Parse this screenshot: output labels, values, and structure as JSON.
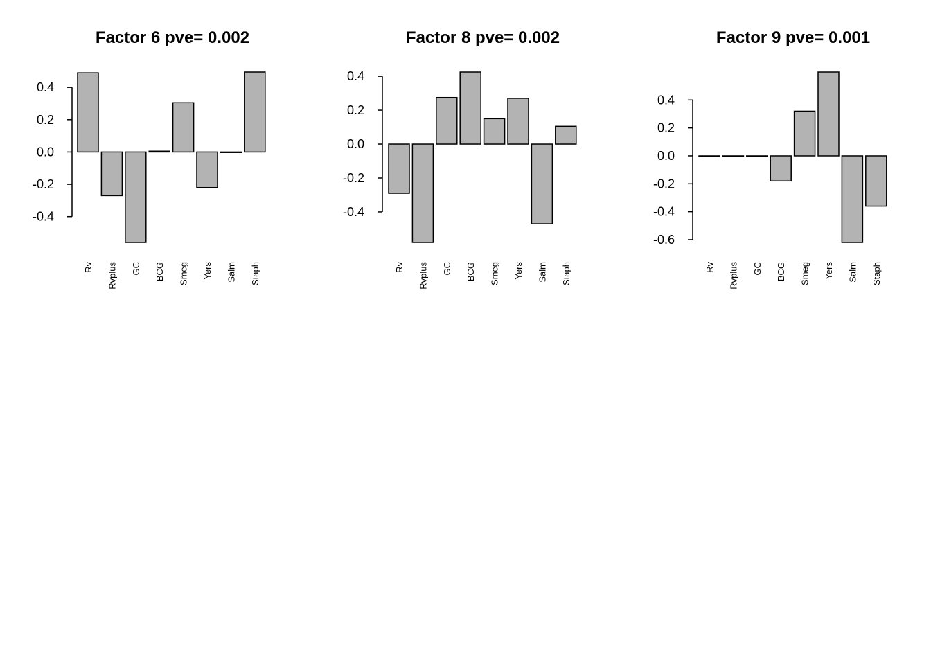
{
  "chart_data": [
    {
      "type": "bar",
      "title": "Factor 6 pve= 0.002",
      "categories": [
        "Rv",
        "Rvplus",
        "GC",
        "BCG",
        "Smeg",
        "Yers",
        "Salm",
        "Staph"
      ],
      "values": [
        0.49,
        -0.27,
        -0.56,
        0.005,
        0.305,
        -0.22,
        -0.003,
        0.495
      ],
      "yticks": [
        -0.4,
        -0.2,
        0.0,
        0.2,
        0.4
      ],
      "ytick_labels": [
        "-0.4",
        "-0.2",
        "0.0",
        "0.2",
        "0.4"
      ],
      "ylim": [
        -0.56,
        0.495
      ],
      "xlabel": "",
      "ylabel": ""
    },
    {
      "type": "bar",
      "title": "Factor 8 pve= 0.002",
      "categories": [
        "Rv",
        "Rvplus",
        "GC",
        "BCG",
        "Smeg",
        "Yers",
        "Salm",
        "Staph"
      ],
      "values": [
        -0.29,
        -0.58,
        0.275,
        0.425,
        0.15,
        0.27,
        -0.47,
        0.105
      ],
      "yticks": [
        -0.4,
        -0.2,
        0.0,
        0.2,
        0.4
      ],
      "ytick_labels": [
        "-0.4",
        "-0.2",
        "0.0",
        "0.2",
        "0.4"
      ],
      "ylim": [
        -0.58,
        0.425
      ],
      "xlabel": "",
      "ylabel": ""
    },
    {
      "type": "bar",
      "title": "Factor 9 pve= 0.001",
      "categories": [
        "Rv",
        "Rvplus",
        "GC",
        "BCG",
        "Smeg",
        "Yers",
        "Salm",
        "Staph"
      ],
      "values": [
        0.0,
        0.0,
        0.0,
        -0.18,
        0.32,
        0.6,
        -0.62,
        -0.36
      ],
      "yticks": [
        -0.6,
        -0.4,
        -0.2,
        0.0,
        0.2,
        0.4
      ],
      "ytick_labels": [
        "-0.6",
        "-0.4",
        "-0.2",
        "0.0",
        "0.2",
        "0.4"
      ],
      "ylim": [
        -0.62,
        0.6
      ],
      "xlabel": "",
      "ylabel": ""
    }
  ]
}
